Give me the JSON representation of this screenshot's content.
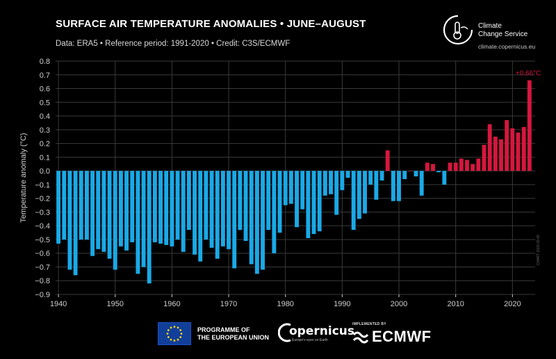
{
  "header": {
    "title": "SURFACE AIR TEMPERATURE ANOMALIES • JUNE–AUGUST",
    "subtitle": "Data: ERA5 • Reference period: 1991-2020 • Credit: C3S/ECMWF"
  },
  "branding": {
    "c3s_line1": "Climate",
    "c3s_line2": "Change Service",
    "c3s_url": "climate.copernicus.eu",
    "eu_line1": "PROGRAMME OF",
    "eu_line2": "THE EUROPEAN UNION",
    "copernicus": "opernicus",
    "copernicus_sub": "Europe's eyes on Earth",
    "implemented_by": "IMPLEMENTED BY",
    "ecmwf": "ECMWF",
    "watermark": "CHART 2023-09-06"
  },
  "colors": {
    "negative": "#1aa9e6",
    "positive": "#d5173e",
    "grid": "#3a3a3a",
    "axis_text": "#cfcfcf"
  },
  "chart_data": {
    "type": "bar",
    "title": "SURFACE AIR TEMPERATURE ANOMALIES • JUNE–AUGUST",
    "ylabel": "Temperature anomaly (°C)",
    "xlabel": "",
    "ylim": [
      -0.9,
      0.8
    ],
    "xlim": [
      1939.5,
      2024
    ],
    "yticks": [
      "0.8",
      "0.7",
      "0.6",
      "0.5",
      "0.4",
      "0.3",
      "0.2",
      "0.1",
      "0.0",
      "−0.1",
      "−0.2",
      "−0.3",
      "−0.4",
      "−0.5",
      "−0.6",
      "−0.7",
      "−0.8",
      "−0.9"
    ],
    "ytick_values": [
      0.8,
      0.7,
      0.6,
      0.5,
      0.4,
      0.3,
      0.2,
      0.1,
      0.0,
      -0.1,
      -0.2,
      -0.3,
      -0.4,
      -0.5,
      -0.6,
      -0.7,
      -0.8,
      -0.9
    ],
    "xticks": [
      "1940",
      "1950",
      "1960",
      "1970",
      "1980",
      "1990",
      "2000",
      "2010",
      "2020"
    ],
    "xtick_values": [
      1940,
      1950,
      1960,
      1970,
      1980,
      1990,
      2000,
      2010,
      2020
    ],
    "grid": true,
    "annotation": {
      "year": 2023,
      "text": "+0.66°C"
    },
    "years": [
      1940,
      1941,
      1942,
      1943,
      1944,
      1945,
      1946,
      1947,
      1948,
      1949,
      1950,
      1951,
      1952,
      1953,
      1954,
      1955,
      1956,
      1957,
      1958,
      1959,
      1960,
      1961,
      1962,
      1963,
      1964,
      1965,
      1966,
      1967,
      1968,
      1969,
      1970,
      1971,
      1972,
      1973,
      1974,
      1975,
      1976,
      1977,
      1978,
      1979,
      1980,
      1981,
      1982,
      1983,
      1984,
      1985,
      1986,
      1987,
      1988,
      1989,
      1990,
      1991,
      1992,
      1993,
      1994,
      1995,
      1996,
      1997,
      1998,
      1999,
      2000,
      2001,
      2002,
      2003,
      2004,
      2005,
      2006,
      2007,
      2008,
      2009,
      2010,
      2011,
      2012,
      2013,
      2014,
      2015,
      2016,
      2017,
      2018,
      2019,
      2020,
      2021,
      2022,
      2023
    ],
    "values": [
      -0.53,
      -0.5,
      -0.72,
      -0.76,
      -0.5,
      -0.5,
      -0.62,
      -0.57,
      -0.59,
      -0.64,
      -0.72,
      -0.55,
      -0.58,
      -0.52,
      -0.75,
      -0.7,
      -0.82,
      -0.52,
      -0.53,
      -0.54,
      -0.55,
      -0.5,
      -0.59,
      -0.43,
      -0.61,
      -0.66,
      -0.5,
      -0.56,
      -0.64,
      -0.55,
      -0.57,
      -0.71,
      -0.43,
      -0.51,
      -0.68,
      -0.75,
      -0.72,
      -0.43,
      -0.6,
      -0.45,
      -0.25,
      -0.24,
      -0.41,
      -0.28,
      -0.49,
      -0.46,
      -0.44,
      -0.18,
      -0.17,
      -0.32,
      -0.14,
      -0.05,
      -0.43,
      -0.35,
      -0.31,
      -0.1,
      -0.21,
      -0.07,
      0.15,
      -0.22,
      -0.22,
      -0.06,
      0.0,
      -0.04,
      -0.18,
      0.06,
      0.05,
      -0.01,
      -0.1,
      0.06,
      0.06,
      0.09,
      0.08,
      0.05,
      0.09,
      0.19,
      0.34,
      0.25,
      0.23,
      0.37,
      0.31,
      0.28,
      0.32,
      0.66
    ]
  }
}
